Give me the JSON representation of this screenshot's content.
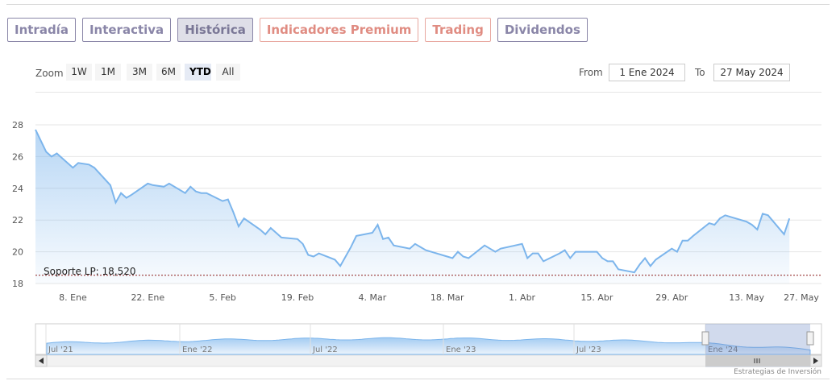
{
  "tabs": [
    {
      "label": "Intradía",
      "state": "normal"
    },
    {
      "label": "Interactiva",
      "state": "normal"
    },
    {
      "label": "Histórica",
      "state": "active"
    },
    {
      "label": "Indicadores Premium",
      "state": "premium"
    },
    {
      "label": "Trading",
      "state": "premium"
    },
    {
      "label": "Dividendos",
      "state": "normal"
    }
  ],
  "range_selector": {
    "zoom_label": "Zoom",
    "buttons": [
      "1W",
      "1M",
      "3M",
      "6M",
      "YTD",
      "All"
    ],
    "selected": "YTD",
    "from_label": "From",
    "from_value": "1 Ene 2024",
    "to_label": "To",
    "to_value": "27 May 2024"
  },
  "chart_data": {
    "type": "area",
    "title": "",
    "xlabel": "",
    "ylabel": "",
    "ylim": [
      18,
      28
    ],
    "y_ticks": [
      18,
      20,
      22,
      24,
      26,
      28
    ],
    "x_range": [
      "2024-01-01",
      "2024-05-27"
    ],
    "x_ticks": [
      {
        "date": "2024-01-08",
        "label": "8. Ene"
      },
      {
        "date": "2024-01-22",
        "label": "22. Ene"
      },
      {
        "date": "2024-02-05",
        "label": "5. Feb"
      },
      {
        "date": "2024-02-19",
        "label": "19. Feb"
      },
      {
        "date": "2024-03-04",
        "label": "4. Mar"
      },
      {
        "date": "2024-03-18",
        "label": "18. Mar"
      },
      {
        "date": "2024-04-01",
        "label": "1. Abr"
      },
      {
        "date": "2024-04-15",
        "label": "15. Abr"
      },
      {
        "date": "2024-04-29",
        "label": "29. Abr"
      },
      {
        "date": "2024-05-13",
        "label": "13. May"
      },
      {
        "date": "2024-05-27",
        "label": "27. May"
      }
    ],
    "grid": true,
    "series": [
      {
        "name": "",
        "color": "#7cb5ec",
        "points": [
          [
            "2024-01-01",
            27.7
          ],
          [
            "2024-01-03",
            26.3
          ],
          [
            "2024-01-04",
            26.0
          ],
          [
            "2024-01-05",
            26.2
          ],
          [
            "2024-01-08",
            25.3
          ],
          [
            "2024-01-09",
            25.6
          ],
          [
            "2024-01-11",
            25.5
          ],
          [
            "2024-01-12",
            25.3
          ],
          [
            "2024-01-15",
            24.2
          ],
          [
            "2024-01-16",
            23.1
          ],
          [
            "2024-01-17",
            23.7
          ],
          [
            "2024-01-18",
            23.4
          ],
          [
            "2024-01-19",
            23.6
          ],
          [
            "2024-01-22",
            24.3
          ],
          [
            "2024-01-23",
            24.2
          ],
          [
            "2024-01-25",
            24.1
          ],
          [
            "2024-01-26",
            24.3
          ],
          [
            "2024-01-29",
            23.7
          ],
          [
            "2024-01-30",
            24.1
          ],
          [
            "2024-01-31",
            23.8
          ],
          [
            "2024-02-01",
            23.7
          ],
          [
            "2024-02-02",
            23.7
          ],
          [
            "2024-02-05",
            23.2
          ],
          [
            "2024-02-06",
            23.3
          ],
          [
            "2024-02-07",
            22.5
          ],
          [
            "2024-02-08",
            21.6
          ],
          [
            "2024-02-09",
            22.1
          ],
          [
            "2024-02-12",
            21.4
          ],
          [
            "2024-02-13",
            21.1
          ],
          [
            "2024-02-14",
            21.5
          ],
          [
            "2024-02-15",
            21.2
          ],
          [
            "2024-02-16",
            20.9
          ],
          [
            "2024-02-19",
            20.8
          ],
          [
            "2024-02-20",
            20.5
          ],
          [
            "2024-02-21",
            19.8
          ],
          [
            "2024-02-22",
            19.7
          ],
          [
            "2024-02-23",
            19.9
          ],
          [
            "2024-02-26",
            19.5
          ],
          [
            "2024-02-27",
            19.1
          ],
          [
            "2024-02-28",
            19.7
          ],
          [
            "2024-02-29",
            20.3
          ],
          [
            "2024-03-01",
            21.0
          ],
          [
            "2024-03-04",
            21.2
          ],
          [
            "2024-03-05",
            21.7
          ],
          [
            "2024-03-06",
            20.8
          ],
          [
            "2024-03-07",
            20.9
          ],
          [
            "2024-03-08",
            20.4
          ],
          [
            "2024-03-11",
            20.2
          ],
          [
            "2024-03-12",
            20.5
          ],
          [
            "2024-03-13",
            20.3
          ],
          [
            "2024-03-14",
            20.1
          ],
          [
            "2024-03-15",
            20.0
          ],
          [
            "2024-03-18",
            19.7
          ],
          [
            "2024-03-19",
            19.6
          ],
          [
            "2024-03-20",
            20.0
          ],
          [
            "2024-03-21",
            19.7
          ],
          [
            "2024-03-22",
            19.6
          ],
          [
            "2024-03-25",
            20.4
          ],
          [
            "2024-03-26",
            20.2
          ],
          [
            "2024-03-27",
            20.0
          ],
          [
            "2024-03-28",
            20.2
          ],
          [
            "2024-04-01",
            20.5
          ],
          [
            "2024-04-02",
            19.6
          ],
          [
            "2024-04-03",
            19.9
          ],
          [
            "2024-04-04",
            19.9
          ],
          [
            "2024-04-05",
            19.4
          ],
          [
            "2024-04-08",
            19.9
          ],
          [
            "2024-04-09",
            20.1
          ],
          [
            "2024-04-10",
            19.6
          ],
          [
            "2024-04-11",
            20.0
          ],
          [
            "2024-04-12",
            20.0
          ],
          [
            "2024-04-15",
            20.0
          ],
          [
            "2024-04-16",
            19.6
          ],
          [
            "2024-04-17",
            19.4
          ],
          [
            "2024-04-18",
            19.4
          ],
          [
            "2024-04-19",
            18.9
          ],
          [
            "2024-04-22",
            18.7
          ],
          [
            "2024-04-23",
            19.2
          ],
          [
            "2024-04-24",
            19.6
          ],
          [
            "2024-04-25",
            19.1
          ],
          [
            "2024-04-26",
            19.5
          ],
          [
            "2024-04-29",
            20.2
          ],
          [
            "2024-04-30",
            20.0
          ],
          [
            "2024-05-01",
            20.7
          ],
          [
            "2024-05-02",
            20.7
          ],
          [
            "2024-05-03",
            21.0
          ],
          [
            "2024-05-06",
            21.8
          ],
          [
            "2024-05-07",
            21.7
          ],
          [
            "2024-05-08",
            22.1
          ],
          [
            "2024-05-09",
            22.3
          ],
          [
            "2024-05-10",
            22.2
          ],
          [
            "2024-05-13",
            21.9
          ],
          [
            "2024-05-14",
            21.7
          ],
          [
            "2024-05-15",
            21.4
          ],
          [
            "2024-05-16",
            22.4
          ],
          [
            "2024-05-17",
            22.3
          ],
          [
            "2024-05-20",
            21.1
          ],
          [
            "2024-05-21",
            22.1
          ]
        ]
      }
    ],
    "reference_line": {
      "label": "Soporte LP: 18,520",
      "value": 18.52,
      "color": "#8b1a1a"
    },
    "navigator": {
      "labels": [
        "Jul '21",
        "Ene '22",
        "Jul '22",
        "Ene '23",
        "Jul '23",
        "Ene '24"
      ],
      "selected_range": [
        "2024-01-01",
        "2024-05-27"
      ]
    },
    "credits": "Estrategias de Inversión"
  }
}
